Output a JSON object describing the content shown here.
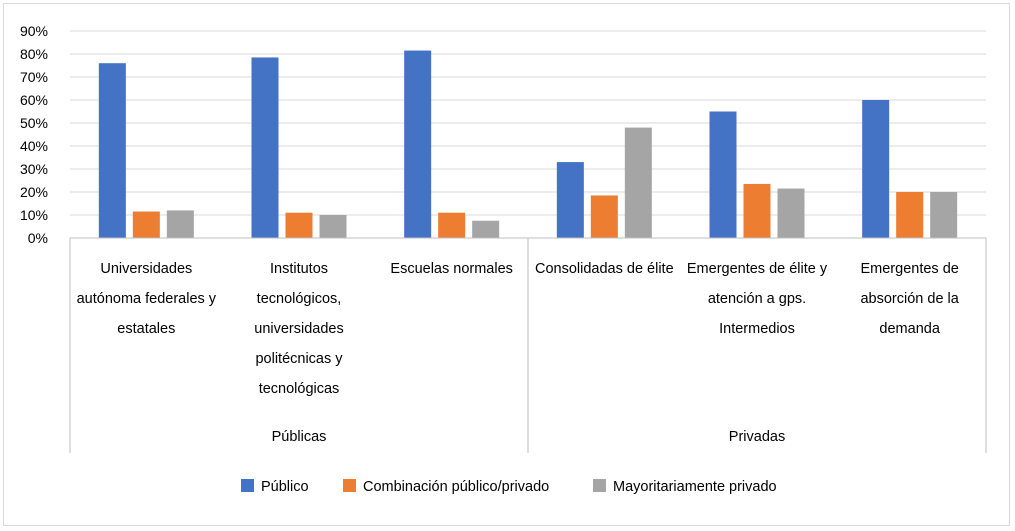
{
  "chart_data": {
    "type": "bar",
    "title": "",
    "xlabel": "",
    "ylabel": "",
    "ylim": [
      0,
      90
    ],
    "y_ticks": [
      "0%",
      "10%",
      "20%",
      "30%",
      "40%",
      "50%",
      "60%",
      "70%",
      "80%",
      "90%"
    ],
    "y_tick_values": [
      0,
      10,
      20,
      30,
      40,
      50,
      60,
      70,
      80,
      90
    ],
    "grid": true,
    "legend_position": "bottom",
    "groups": [
      {
        "label": "Públicas",
        "categories": [
          0,
          1,
          2
        ]
      },
      {
        "label": "Privadas",
        "categories": [
          3,
          4,
          5
        ]
      }
    ],
    "categories": [
      [
        "Universidades",
        "autónoma federales y",
        "estatales"
      ],
      [
        "Institutos",
        "tecnológicos,",
        "universidades",
        "politécnicas y",
        "tecnológicas"
      ],
      [
        "Escuelas normales"
      ],
      [
        "Consolidadas de élite"
      ],
      [
        "Emergentes de élite y",
        "atención a gps.",
        "Intermedios"
      ],
      [
        "Emergentes de",
        "absorción de la",
        "demanda"
      ]
    ],
    "series": [
      {
        "name": "Público",
        "color": "#4472c4",
        "values": [
          76,
          78.5,
          81.5,
          33,
          55,
          60
        ]
      },
      {
        "name": "Combinación público/privado",
        "color": "#ed7d31",
        "values": [
          11.5,
          11,
          11,
          18.5,
          23.5,
          20
        ]
      },
      {
        "name": "Mayoritariamente privado",
        "color": "#a5a5a5",
        "values": [
          12,
          10,
          7.5,
          48,
          21.5,
          20
        ]
      }
    ]
  }
}
